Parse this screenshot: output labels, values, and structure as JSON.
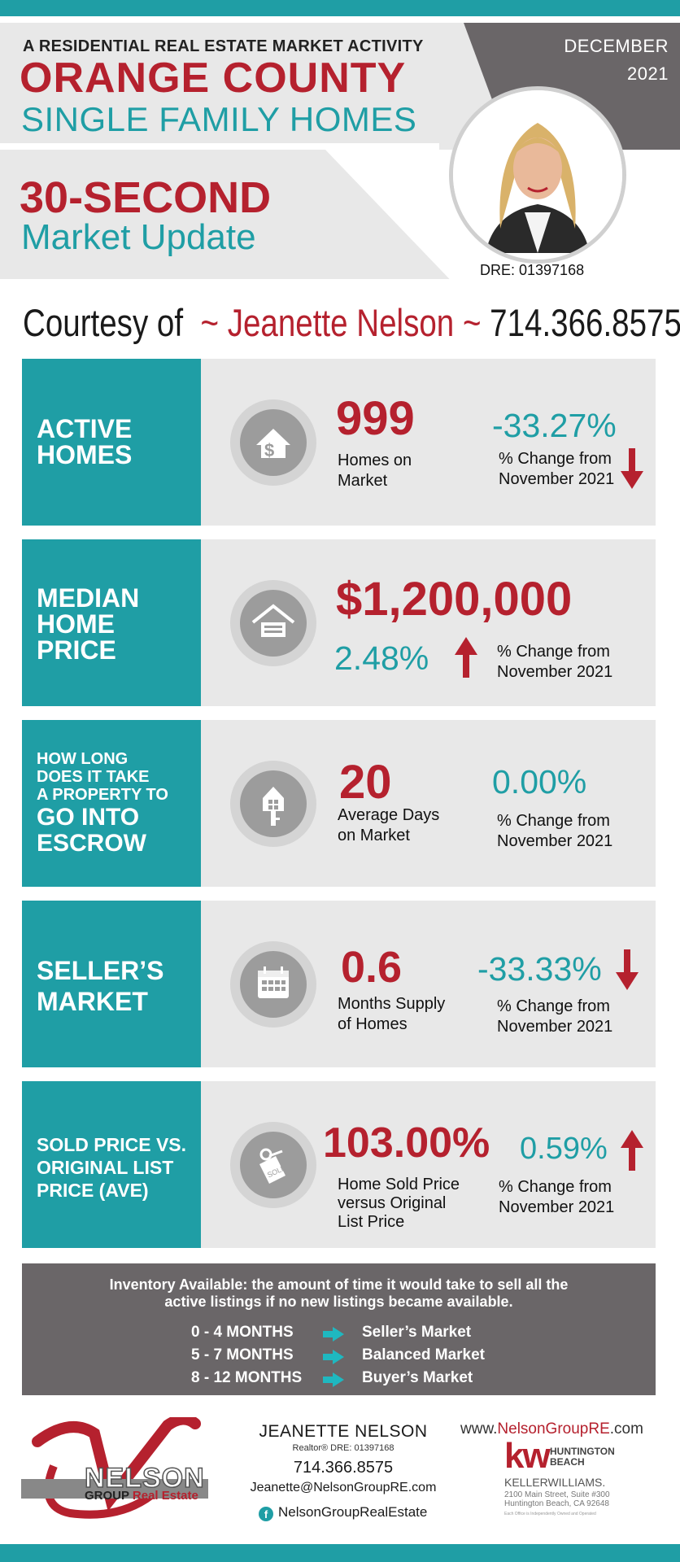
{
  "header": {
    "subtitle": "A RESIDENTIAL REAL ESTATE MARKET ACTIVITY",
    "county": "ORANGE COUNTY",
    "category": "SINGLE FAMILY HOMES",
    "update_line1": "30-SECOND",
    "update_line2": "Market Update",
    "month": "DECEMBER",
    "year": "2021",
    "dre": "DRE: 01397168"
  },
  "courtesy": {
    "prefix": "Courtesy of",
    "name": "~ Jeanette Nelson ~",
    "phone": "714.366.8575"
  },
  "cards": [
    {
      "title1": "ACTIVE",
      "title2": "HOMES",
      "value": "999",
      "label1": "Homes on",
      "label2": "Market",
      "change": "-33.27%",
      "change_label1": "% Change from",
      "change_label2": "November 2021",
      "direction": "down",
      "icon": "house-dollar-icon"
    },
    {
      "title1": "MEDIAN",
      "title2": "HOME",
      "title3": "PRICE",
      "value": "$1,200,000",
      "change": "2.48%",
      "change_label1": "% Change from",
      "change_label2": "November 2021",
      "direction": "up",
      "icon": "house-money-icon"
    },
    {
      "title1": "HOW LONG",
      "title2": "DOES IT TAKE",
      "title3": "A PROPERTY TO",
      "title4": "GO INTO",
      "title5": "ESCROW",
      "value": "20",
      "label1": "Average Days",
      "label2": "on Market",
      "change": "0.00%",
      "change_label1": "% Change from",
      "change_label2": "November 2021",
      "direction": "none",
      "icon": "house-key-icon"
    },
    {
      "title1": "SELLER’S",
      "title2": "MARKET",
      "value": "0.6",
      "label1": "Months Supply",
      "label2": "of Homes",
      "change": "-33.33%",
      "change_label1": "% Change from",
      "change_label2": "November 2021",
      "direction": "down",
      "icon": "calendar-icon"
    },
    {
      "title1": "SOLD PRICE VS.",
      "title2": "ORIGINAL LIST",
      "title3": "PRICE (AVE)",
      "value": "103.00%",
      "label1": "Home Sold Price",
      "label2": "versus Original",
      "label3": "List Price",
      "change": "0.59%",
      "change_label1": "% Change from",
      "change_label2": "November 2021",
      "direction": "up",
      "icon": "sold-tag-icon"
    }
  ],
  "inventory": {
    "line1": "Inventory Available:  the amount of time it would take to sell all the",
    "line2": "active listings if no new listings became available.",
    "rows": [
      {
        "range": "0 - 4 MONTHS",
        "market": "Seller’s Market"
      },
      {
        "range": "5 - 7 MONTHS",
        "market": "Balanced Market"
      },
      {
        "range": "8 - 12 MONTHS",
        "market": "Buyer’s Market"
      }
    ]
  },
  "footer": {
    "logo_text1": "NELSON",
    "logo_text2": "GROUP",
    "logo_text3": "Real Estate",
    "name": "JEANETTE NELSON",
    "credentials": "Realtor® DRE: 01397168",
    "phone": "714.366.8575",
    "email": "Jeanette@NelsonGroupRE.com",
    "facebook": "NelsonGroupRealEstate",
    "web_prefix": "www.",
    "web_main": "NelsonGroupRE",
    "web_suffix": ".com",
    "kw": "kw",
    "kw_office1": "HUNTINGTON",
    "kw_office2": "BEACH",
    "kw_brand": "KELLERWILLIAMS.",
    "kw_addr1": "2100 Main Street, Suite #300",
    "kw_addr2": "Huntington Beach, CA 92648",
    "kw_note": "Each Office is Independently Owned and Operated"
  },
  "colors": {
    "teal": "#1f9ea5",
    "red": "#b5212e",
    "dark_gray": "#6a6668",
    "light_gray": "#e8e8e8"
  }
}
